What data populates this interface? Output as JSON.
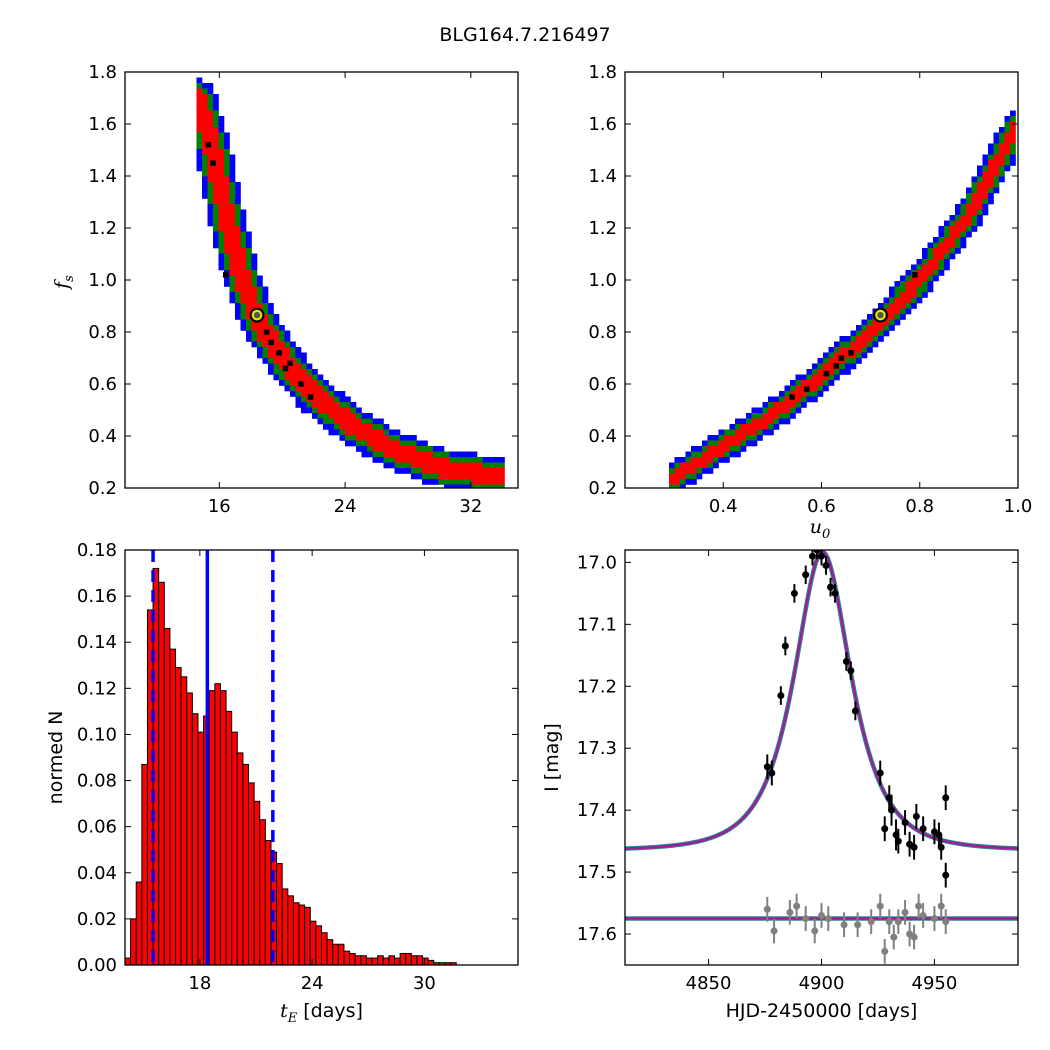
{
  "figure_title": "BLG164.7.216497",
  "chart_data": [
    {
      "type": "heatmap",
      "id": "fs_vs_tE",
      "xlim": [
        10,
        35
      ],
      "ylim": [
        0.2,
        1.8
      ],
      "xticks": [
        16,
        24,
        32
      ],
      "yticks": [
        0.2,
        0.4,
        0.6,
        0.8,
        1.0,
        1.2,
        1.4,
        1.6,
        1.8
      ],
      "ylabel": "f",
      "ylabel_sub": "s",
      "xlabel": "",
      "curve": {
        "points": [
          [
            14.6,
            1.7
          ],
          [
            15.6,
            1.5
          ],
          [
            16.6,
            1.2
          ],
          [
            17.5,
            1.0
          ],
          [
            18.5,
            0.84
          ],
          [
            20.0,
            0.7
          ],
          [
            22.0,
            0.56
          ],
          [
            24.5,
            0.44
          ],
          [
            27.0,
            0.35
          ],
          [
            30.0,
            0.28
          ],
          [
            34.0,
            0.24
          ]
        ],
        "widths": {
          "red": 0.55,
          "green": 0.85,
          "blue": 1.15
        }
      },
      "best_fit": {
        "x": 18.4,
        "y": 0.865
      },
      "black_points": [
        [
          15.3,
          1.52
        ],
        [
          15.6,
          1.45
        ],
        [
          16.4,
          1.02
        ],
        [
          19.0,
          0.8
        ],
        [
          19.3,
          0.76
        ],
        [
          19.8,
          0.72
        ],
        [
          20.5,
          0.68
        ],
        [
          21.2,
          0.6
        ],
        [
          21.8,
          0.55
        ],
        [
          20.2,
          0.66
        ]
      ],
      "colors": {
        "inner": "#ff0000",
        "middle": "#007f00",
        "outer": "#0000ff"
      }
    },
    {
      "type": "heatmap",
      "id": "fs_vs_u0",
      "xlim": [
        0.2,
        1.0
      ],
      "ylim": [
        0.2,
        1.8
      ],
      "xticks": [
        0.4,
        0.6,
        0.8,
        1.0
      ],
      "xtick_labels": [
        "0.4",
        "0.6",
        "0.8",
        "1.0"
      ],
      "yticks": [
        0.2,
        0.4,
        0.6,
        0.8,
        1.0,
        1.2,
        1.4,
        1.6,
        1.8
      ],
      "xlabel": "u",
      "xlabel_sub": "0",
      "curve": {
        "points": [
          [
            0.3,
            0.24
          ],
          [
            0.4,
            0.36
          ],
          [
            0.5,
            0.48
          ],
          [
            0.6,
            0.63
          ],
          [
            0.7,
            0.8
          ],
          [
            0.8,
            1.0
          ],
          [
            0.9,
            1.25
          ],
          [
            1.0,
            1.6
          ]
        ],
        "widths": {
          "red": 0.012,
          "green": 0.02,
          "blue": 0.03
        }
      },
      "best_fit": {
        "x": 0.72,
        "y": 0.865
      },
      "black_points": [
        [
          0.54,
          0.55
        ],
        [
          0.57,
          0.58
        ],
        [
          0.61,
          0.64
        ],
        [
          0.64,
          0.7
        ],
        [
          0.66,
          0.72
        ],
        [
          0.79,
          1.02
        ],
        [
          0.63,
          0.67
        ]
      ],
      "colors": {
        "inner": "#ff0000",
        "middle": "#007f00",
        "outer": "#0000ff"
      }
    },
    {
      "type": "bar",
      "id": "tE_histogram",
      "xlim": [
        14,
        35
      ],
      "ylim": [
        0.0,
        0.18
      ],
      "xticks": [
        18,
        24,
        30
      ],
      "yticks": [
        0.0,
        0.02,
        0.04,
        0.06,
        0.08,
        0.1,
        0.12,
        0.14,
        0.16,
        0.18
      ],
      "ytick_labels": [
        "0.00",
        "0.02",
        "0.04",
        "0.06",
        "0.08",
        "0.10",
        "0.12",
        "0.14",
        "0.16",
        "0.18"
      ],
      "xlabel": "t",
      "xlabel_sub": "E",
      "xlabel_unit": " [days]",
      "ylabel": "normed N",
      "bin_start": 14.0,
      "bin_width": 0.3,
      "values": [
        0.003,
        0.02,
        0.036,
        0.087,
        0.154,
        0.172,
        0.166,
        0.146,
        0.137,
        0.129,
        0.125,
        0.118,
        0.109,
        0.101,
        0.108,
        0.119,
        0.122,
        0.119,
        0.11,
        0.101,
        0.092,
        0.087,
        0.079,
        0.071,
        0.063,
        0.054,
        0.049,
        0.044,
        0.033,
        0.03,
        0.027,
        0.026,
        0.025,
        0.019,
        0.017,
        0.014,
        0.011,
        0.009,
        0.009,
        0.006,
        0.005,
        0.004,
        0.004,
        0.003,
        0.003,
        0.004,
        0.003,
        0.004,
        0.003,
        0.005,
        0.005,
        0.004,
        0.004,
        0.003,
        0.002,
        0.001,
        0.001,
        0.001,
        0.001,
        0.0,
        0.0,
        0.0,
        0.0,
        0.0,
        0.0,
        0.0,
        0.0,
        0.0,
        0.0,
        0.0
      ],
      "vlines": {
        "median": 18.4,
        "lower": 15.5,
        "upper": 21.9
      },
      "colors": {
        "bar": "#ff0000",
        "edge": "#000000",
        "line": "#0000ff"
      }
    },
    {
      "type": "scatter",
      "id": "light_curve",
      "xlim": [
        4813,
        4987
      ],
      "ylim": [
        17.65,
        16.98
      ],
      "xticks": [
        4850,
        4900,
        4950
      ],
      "yticks": [
        17.0,
        17.1,
        17.2,
        17.3,
        17.4,
        17.5,
        17.6
      ],
      "xlabel": "HJD-2450000 [days]",
      "ylabel": "I [mag]",
      "model": {
        "t0": 4900.5,
        "tE": 18.4,
        "u0": 0.72,
        "fs": 0.865,
        "base": 17.465
      },
      "residual_baseline": 17.575,
      "data": [
        [
          4876,
          17.33,
          0.02
        ],
        [
          4878,
          17.34,
          0.02
        ],
        [
          4882,
          17.215,
          0.015
        ],
        [
          4884,
          17.135,
          0.015
        ],
        [
          4888,
          17.05,
          0.015
        ],
        [
          4893,
          17.02,
          0.015
        ],
        [
          4896,
          16.99,
          0.015
        ],
        [
          4898,
          16.98,
          0.015
        ],
        [
          4900,
          16.99,
          0.015
        ],
        [
          4902,
          17.005,
          0.015
        ],
        [
          4904,
          17.04,
          0.015
        ],
        [
          4906,
          17.05,
          0.015
        ],
        [
          4911,
          17.16,
          0.015
        ],
        [
          4913,
          17.175,
          0.015
        ],
        [
          4915,
          17.24,
          0.015
        ],
        [
          4926,
          17.34,
          0.02
        ],
        [
          4928,
          17.43,
          0.02
        ],
        [
          4930,
          17.38,
          0.02
        ],
        [
          4931,
          17.4,
          0.025
        ],
        [
          4933,
          17.44,
          0.025
        ],
        [
          4934,
          17.45,
          0.02
        ],
        [
          4937,
          17.42,
          0.02
        ],
        [
          4939,
          17.455,
          0.02
        ],
        [
          4941,
          17.46,
          0.02
        ],
        [
          4942,
          17.41,
          0.02
        ],
        [
          4945,
          17.43,
          0.02
        ],
        [
          4950,
          17.435,
          0.02
        ],
        [
          4952,
          17.44,
          0.02
        ],
        [
          4953,
          17.46,
          0.02
        ],
        [
          4955,
          17.38,
          0.02
        ],
        [
          4955,
          17.505,
          0.02
        ]
      ],
      "residuals": [
        [
          4876,
          17.56,
          0.02
        ],
        [
          4879,
          17.595,
          0.02
        ],
        [
          4886,
          17.565,
          0.02
        ],
        [
          4889,
          17.555,
          0.02
        ],
        [
          4893,
          17.575,
          0.02
        ],
        [
          4897,
          17.595,
          0.02
        ],
        [
          4900,
          17.57,
          0.02
        ],
        [
          4903,
          17.575,
          0.02
        ],
        [
          4910,
          17.585,
          0.02
        ],
        [
          4916,
          17.585,
          0.02
        ],
        [
          4922,
          17.58,
          0.02
        ],
        [
          4926,
          17.555,
          0.02
        ],
        [
          4928,
          17.628,
          0.02
        ],
        [
          4930,
          17.58,
          0.02
        ],
        [
          4932,
          17.605,
          0.02
        ],
        [
          4934,
          17.58,
          0.02
        ],
        [
          4937,
          17.565,
          0.02
        ],
        [
          4939,
          17.6,
          0.02
        ],
        [
          4941,
          17.605,
          0.02
        ],
        [
          4943,
          17.555,
          0.02
        ],
        [
          4945,
          17.57,
          0.02
        ],
        [
          4950,
          17.575,
          0.02
        ],
        [
          4953,
          17.555,
          0.02
        ],
        [
          4955,
          17.58,
          0.02
        ]
      ],
      "colors": {
        "data": "#000000",
        "residual": "#808080",
        "model": "#9b1f9b",
        "model_under": "#2a8a8a"
      }
    }
  ]
}
